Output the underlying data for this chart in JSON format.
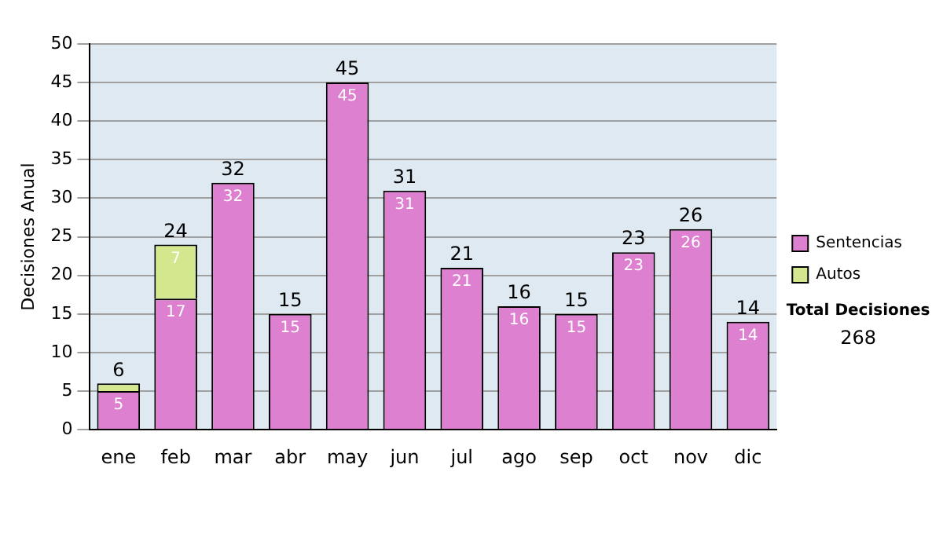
{
  "chart_data": {
    "type": "bar",
    "stacked": true,
    "ylabel": "Decisiones Anual",
    "categories": [
      "ene",
      "feb",
      "mar",
      "abr",
      "may",
      "jun",
      "jul",
      "ago",
      "sep",
      "oct",
      "nov",
      "dic"
    ],
    "series": [
      {
        "name": "Sentencias",
        "color": "#dd80cf",
        "values": [
          5,
          17,
          32,
          15,
          45,
          31,
          21,
          16,
          15,
          23,
          26,
          14
        ],
        "value_labels": [
          "5",
          "17",
          "32",
          "15",
          "45",
          "31",
          "21",
          "16",
          "15",
          "23",
          "26",
          "14"
        ]
      },
      {
        "name": "Autos",
        "color": "#d3e78f",
        "values": [
          1,
          7,
          0,
          0,
          0,
          0,
          0,
          0,
          0,
          0,
          0,
          0
        ],
        "value_labels": [
          null,
          "7",
          null,
          null,
          null,
          null,
          null,
          null,
          null,
          null,
          null,
          null
        ]
      }
    ],
    "totals": [
      "6",
      "24",
      "32",
      "15",
      "45",
      "31",
      "21",
      "16",
      "15",
      "23",
      "26",
      "14"
    ],
    "ylim": [
      0,
      50
    ],
    "yticks": [
      0,
      5,
      10,
      15,
      20,
      25,
      30,
      35,
      40,
      45,
      50
    ],
    "grid": "y",
    "legend": "right",
    "annotations": [
      "Total Decisiones",
      "268"
    ]
  }
}
